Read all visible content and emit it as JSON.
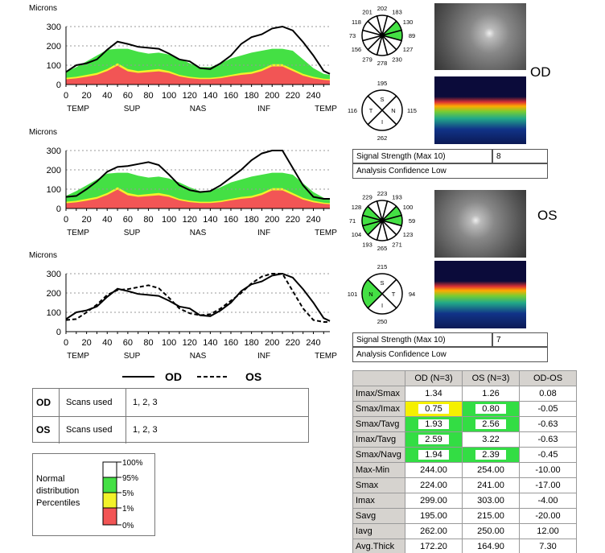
{
  "chart_data": [
    {
      "type": "area",
      "title": "OD RNFL thickness profile",
      "ylabel": "Microns",
      "ylim": [
        0,
        300
      ],
      "xlim": [
        0,
        256
      ],
      "xticks": [
        0,
        20,
        40,
        60,
        80,
        100,
        120,
        140,
        160,
        180,
        200,
        220,
        240
      ],
      "yticks": [
        0,
        100,
        200,
        300
      ],
      "regions": [
        "TEMP",
        "SUP",
        "NAS",
        "INF",
        "TEMP"
      ],
      "series": [
        {
          "name": "OD",
          "style": "solid",
          "x": [
            0,
            10,
            20,
            30,
            40,
            50,
            60,
            70,
            80,
            90,
            100,
            110,
            120,
            130,
            140,
            150,
            160,
            170,
            180,
            190,
            200,
            210,
            220,
            230,
            240,
            250,
            256
          ],
          "y": [
            65,
            100,
            110,
            130,
            180,
            222,
            210,
            195,
            190,
            185,
            160,
            130,
            120,
            85,
            80,
            110,
            150,
            210,
            245,
            260,
            290,
            300,
            280,
            220,
            150,
            70,
            55
          ]
        }
      ],
      "normative": true
    },
    {
      "type": "area",
      "title": "OS RNFL thickness profile",
      "ylabel": "Microns",
      "ylim": [
        0,
        300
      ],
      "xlim": [
        0,
        256
      ],
      "xticks": [
        0,
        20,
        40,
        60,
        80,
        100,
        120,
        140,
        160,
        180,
        200,
        220,
        240
      ],
      "yticks": [
        0,
        100,
        200,
        300
      ],
      "regions": [
        "TEMP",
        "SUP",
        "NAS",
        "INF",
        "TEMP"
      ],
      "series": [
        {
          "name": "OS",
          "style": "solid",
          "x": [
            0,
            10,
            20,
            30,
            40,
            50,
            60,
            70,
            80,
            90,
            100,
            110,
            120,
            130,
            140,
            150,
            160,
            170,
            180,
            190,
            200,
            210,
            220,
            230,
            240,
            250,
            256
          ],
          "y": [
            60,
            65,
            100,
            140,
            190,
            215,
            220,
            230,
            240,
            225,
            175,
            120,
            95,
            85,
            90,
            120,
            160,
            200,
            250,
            285,
            300,
            300,
            210,
            120,
            60,
            50,
            50
          ]
        }
      ],
      "normative": true
    },
    {
      "type": "line",
      "title": "OD vs OS comparison",
      "ylabel": "Microns",
      "ylim": [
        0,
        300
      ],
      "xlim": [
        0,
        256
      ],
      "xticks": [
        0,
        20,
        40,
        60,
        80,
        100,
        120,
        140,
        160,
        180,
        200,
        220,
        240
      ],
      "yticks": [
        0,
        100,
        200,
        300
      ],
      "regions": [
        "TEMP",
        "SUP",
        "NAS",
        "INF",
        "TEMP"
      ],
      "series": [
        {
          "name": "OD",
          "style": "solid",
          "x": [
            0,
            10,
            20,
            30,
            40,
            50,
            60,
            70,
            80,
            90,
            100,
            110,
            120,
            130,
            140,
            150,
            160,
            170,
            180,
            190,
            200,
            210,
            220,
            230,
            240,
            250,
            256
          ],
          "y": [
            65,
            100,
            110,
            130,
            180,
            222,
            210,
            195,
            190,
            185,
            160,
            130,
            120,
            85,
            80,
            110,
            150,
            210,
            245,
            260,
            290,
            300,
            280,
            220,
            150,
            70,
            55
          ]
        },
        {
          "name": "OS",
          "style": "dashed",
          "x": [
            0,
            10,
            20,
            30,
            40,
            50,
            60,
            70,
            80,
            90,
            100,
            110,
            120,
            130,
            140,
            150,
            160,
            170,
            180,
            190,
            200,
            210,
            220,
            230,
            240,
            250,
            256
          ],
          "y": [
            60,
            65,
            100,
            140,
            190,
            215,
            220,
            230,
            240,
            225,
            175,
            120,
            95,
            85,
            90,
            120,
            160,
            200,
            250,
            285,
            300,
            300,
            210,
            120,
            60,
            50,
            50
          ]
        }
      ],
      "normative": false
    }
  ],
  "normative_bands": {
    "x": [
      0,
      10,
      20,
      30,
      40,
      50,
      60,
      70,
      80,
      90,
      100,
      110,
      120,
      130,
      140,
      150,
      160,
      170,
      180,
      190,
      200,
      210,
      220,
      230,
      240,
      250,
      256
    ],
    "p95": [
      65,
      90,
      120,
      150,
      180,
      185,
      185,
      170,
      160,
      165,
      155,
      135,
      110,
      90,
      90,
      110,
      135,
      150,
      165,
      175,
      185,
      185,
      175,
      130,
      85,
      55,
      50
    ],
    "p5": [
      35,
      40,
      50,
      60,
      80,
      110,
      80,
      70,
      75,
      80,
      70,
      50,
      40,
      35,
      35,
      40,
      50,
      60,
      65,
      80,
      105,
      105,
      80,
      55,
      40,
      30,
      28
    ],
    "p1": [
      27,
      32,
      40,
      50,
      70,
      98,
      68,
      60,
      64,
      68,
      60,
      42,
      33,
      28,
      28,
      33,
      42,
      50,
      55,
      70,
      94,
      94,
      70,
      46,
      32,
      24,
      22
    ]
  },
  "colors": {
    "green": "#44e044",
    "yellow": "#f2f22a",
    "red": "#f25555",
    "white": "#ffffff"
  },
  "legend_lines": {
    "od": "OD",
    "os": "OS"
  },
  "scans": [
    {
      "eye": "OD",
      "label": "Scans used",
      "value": "1, 2, 3"
    },
    {
      "eye": "OS",
      "label": "Scans used",
      "value": "1, 2, 3"
    }
  ],
  "percentile_legend": {
    "title_lines": [
      "Normal",
      "distribution",
      "Percentiles"
    ],
    "ticks": [
      "100%",
      "95%",
      "5%",
      "1%",
      "0%"
    ]
  },
  "od": {
    "label": "OD",
    "clock": [
      202,
      183,
      130,
      89,
      127,
      230,
      278,
      279,
      156,
      73,
      118,
      201
    ],
    "clock_green": [
      2,
      3
    ],
    "quadrants": {
      "S": 195,
      "N": 115,
      "I": 262,
      "T": 116
    },
    "quadrant_green": [],
    "signal_label": "Signal Strength (Max 10)",
    "signal_value": "8",
    "confidence": "Analysis Confidence Low"
  },
  "os": {
    "label": "OS",
    "clock": [
      223,
      193,
      100,
      59,
      123,
      271,
      265,
      193,
      104,
      71,
      128,
      229
    ],
    "clock_green": [
      2,
      3,
      8,
      9,
      10
    ],
    "quadrants": {
      "S": 215,
      "T": 94,
      "I": 250,
      "N": 101
    },
    "quadrant_green": [
      "N"
    ],
    "signal_label": "Signal Strength (Max 10)",
    "signal_value": "7",
    "confidence": "Analysis Confidence Low"
  },
  "stats": {
    "headers": [
      "",
      "OD (N=3)",
      "OS (N=3)",
      "OD-OS"
    ],
    "rows": [
      {
        "label": "Imax/Smax",
        "od": "1.34",
        "os": "1.26",
        "diff": "0.08",
        "od_flag": "",
        "os_flag": ""
      },
      {
        "label": "Smax/Imax",
        "od": "0.75",
        "os": "0.80",
        "diff": "-0.05",
        "od_flag": "yellow",
        "os_flag": "green"
      },
      {
        "label": "Smax/Tavg",
        "od": "1.93",
        "os": "2.56",
        "diff": "-0.63",
        "od_flag": "green",
        "os_flag": "green"
      },
      {
        "label": "Imax/Tavg",
        "od": "2.59",
        "os": "3.22",
        "diff": "-0.63",
        "od_flag": "green",
        "os_flag": ""
      },
      {
        "label": "Smax/Navg",
        "od": "1.94",
        "os": "2.39",
        "diff": "-0.45",
        "od_flag": "green",
        "os_flag": "green"
      },
      {
        "label": "Max-Min",
        "od": "244.00",
        "os": "254.00",
        "diff": "-10.00",
        "od_flag": "",
        "os_flag": ""
      },
      {
        "label": "Smax",
        "od": "224.00",
        "os": "241.00",
        "diff": "-17.00",
        "od_flag": "",
        "os_flag": ""
      },
      {
        "label": "Imax",
        "od": "299.00",
        "os": "303.00",
        "diff": "-4.00",
        "od_flag": "",
        "os_flag": ""
      },
      {
        "label": "Savg",
        "od": "195.00",
        "os": "215.00",
        "diff": "-20.00",
        "od_flag": "",
        "os_flag": ""
      },
      {
        "label": "Iavg",
        "od": "262.00",
        "os": "250.00",
        "diff": "12.00",
        "od_flag": "",
        "os_flag": ""
      },
      {
        "label": "Avg.Thick",
        "od": "172.20",
        "os": "164.90",
        "diff": "7.30",
        "od_flag": "",
        "os_flag": ""
      }
    ]
  }
}
